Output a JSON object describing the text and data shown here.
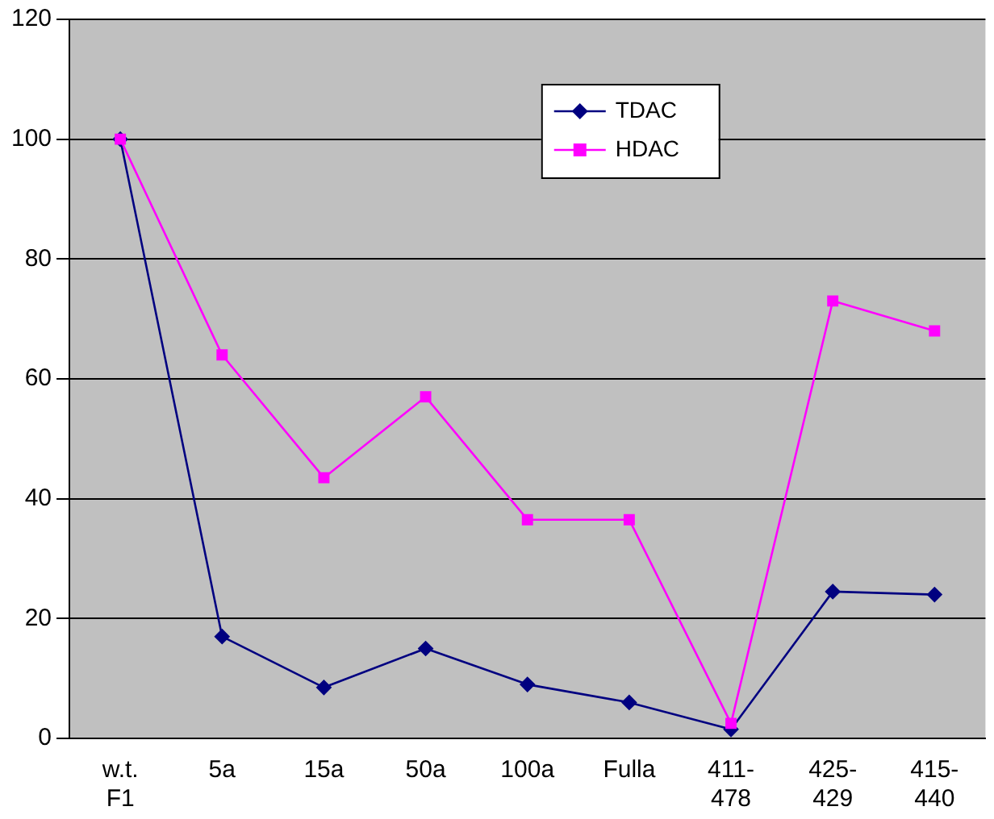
{
  "chart_data": {
    "type": "line",
    "categories": [
      "w.t. F1",
      "5a",
      "15a",
      "50a",
      "100a",
      "Fulla",
      "411-478",
      "425-429",
      "415-440"
    ],
    "series": [
      {
        "name": "TDAC",
        "color": "#000080",
        "marker": "diamond",
        "values": [
          100,
          17,
          8.5,
          15,
          9,
          6,
          1.5,
          24.5,
          24
        ]
      },
      {
        "name": "HDAC",
        "color": "#ff00ff",
        "marker": "square",
        "values": [
          100,
          64,
          43.5,
          57,
          36.5,
          36.5,
          2.5,
          73,
          68
        ]
      }
    ],
    "ylim": [
      0,
      120
    ],
    "yticks": [
      0,
      20,
      40,
      60,
      80,
      100,
      120
    ],
    "grid": "y",
    "legend": "top right"
  }
}
